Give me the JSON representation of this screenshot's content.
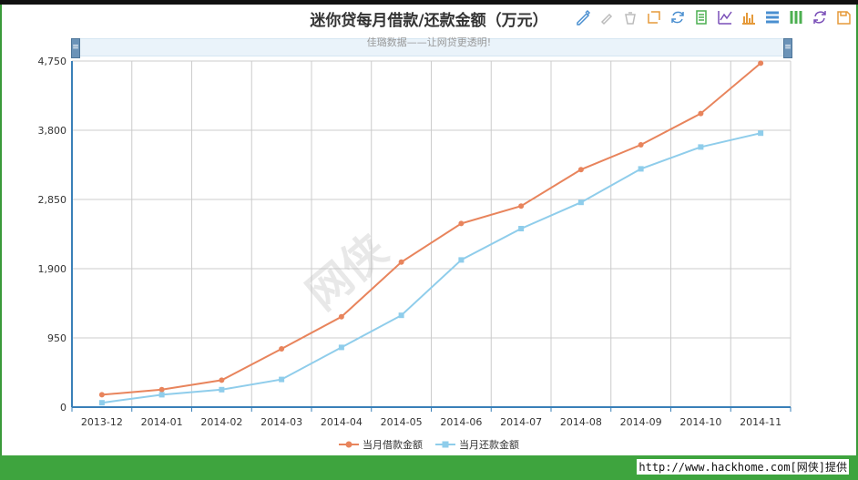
{
  "title": "迷你贷每月借款/还款金额（万元）",
  "subtitle": "佳璐数据——让网贷更透明!",
  "zoom_handle_glyph": "≡",
  "watermark": "网侠",
  "footer": "http://www.hackhome.com[网侠]提供",
  "toolbox": [
    {
      "icon": "mark-pen-icon"
    },
    {
      "icon": "mark-undo-icon"
    },
    {
      "icon": "mark-clear-icon"
    },
    {
      "icon": "data-zoom-icon"
    },
    {
      "icon": "data-zoom-reset-icon"
    },
    {
      "icon": "data-view-icon"
    },
    {
      "icon": "line-chart-icon"
    },
    {
      "icon": "bar-chart-icon"
    },
    {
      "icon": "stack-icon"
    },
    {
      "icon": "tiled-icon"
    },
    {
      "icon": "restore-icon"
    },
    {
      "icon": "save-image-icon"
    }
  ],
  "colors": {
    "borrow": "#e8845c",
    "repay": "#8fcdeb",
    "grid": "#cccccc",
    "axis": "#3a80b8",
    "frame": "#3a9a3a"
  },
  "chart_data": {
    "type": "line",
    "categories": [
      "2013-12",
      "2014-01",
      "2014-02",
      "2014-03",
      "2014-04",
      "2014-05",
      "2014-06",
      "2014-07",
      "2014-08",
      "2014-09",
      "2014-10",
      "2014-11"
    ],
    "yticks": [
      "0",
      "950",
      "1,900",
      "2,850",
      "3,800",
      "4,750"
    ],
    "ylim": [
      0,
      4750
    ],
    "grid": true,
    "legend_position": "bottom",
    "series": [
      {
        "name": "当月借款金额",
        "color": "#e8845c",
        "marker": "circle",
        "values": [
          170,
          240,
          370,
          800,
          1240,
          1990,
          2520,
          2760,
          3260,
          3600,
          4030,
          4720
        ]
      },
      {
        "name": "当月还款金额",
        "color": "#8fcdeb",
        "marker": "square",
        "values": [
          60,
          170,
          240,
          380,
          820,
          1260,
          2020,
          2450,
          2810,
          3270,
          3570,
          3760
        ]
      }
    ]
  }
}
